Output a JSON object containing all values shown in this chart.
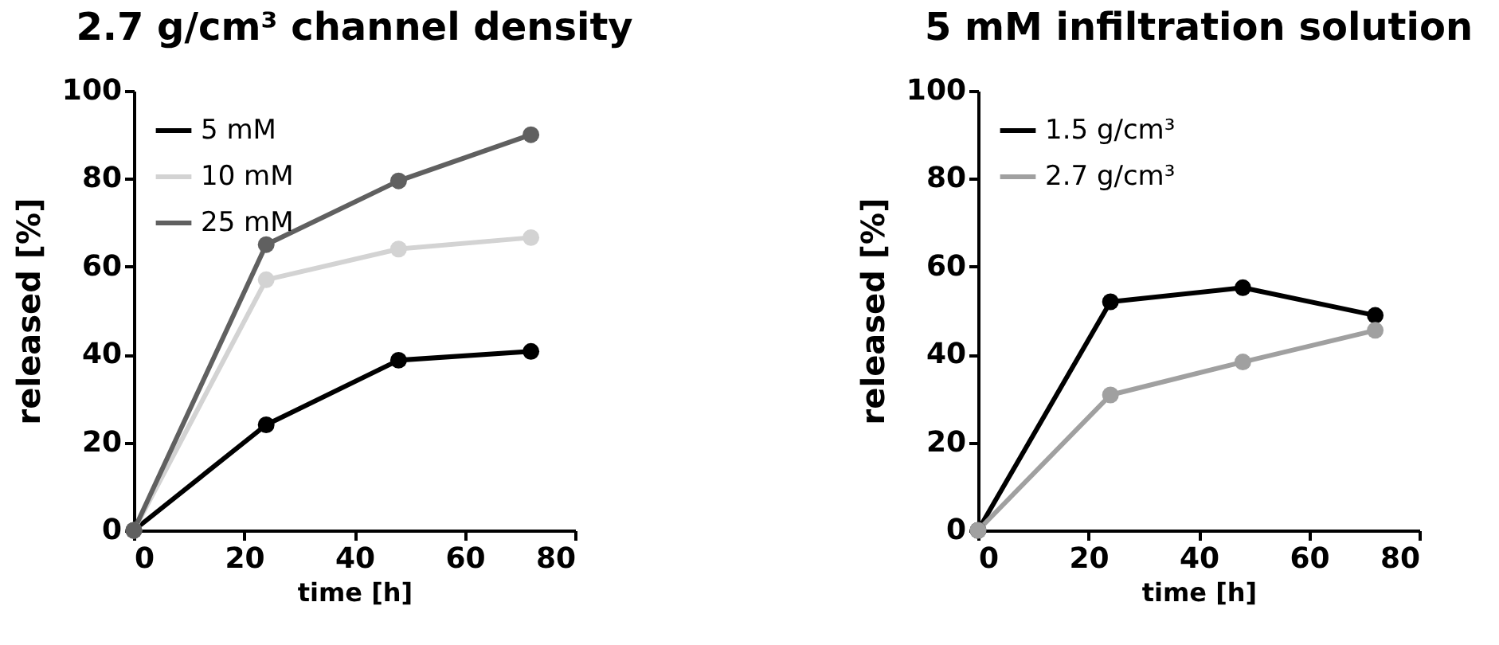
{
  "chart_data": [
    {
      "type": "line",
      "title": "2.7 g/cm³ channel density",
      "xlabel": "time [h]",
      "ylabel": "released [%]",
      "x": [
        0,
        24,
        48,
        72
      ],
      "series": [
        {
          "name": "5 mM",
          "color": "#000000",
          "values": [
            0,
            24,
            38.7,
            40.7
          ]
        },
        {
          "name": "10 mM",
          "color": "#d3d3d3",
          "values": [
            0,
            57,
            64,
            66.6
          ]
        },
        {
          "name": "25 mM",
          "color": "#606060",
          "values": [
            0,
            65,
            79.5,
            90
          ]
        }
      ],
      "xlim": [
        0,
        80
      ],
      "xticks": [
        0,
        20,
        40,
        60,
        80
      ],
      "ylim": [
        0,
        100
      ],
      "yticks": [
        0,
        20,
        40,
        60,
        80,
        100
      ],
      "grid": false,
      "legend": "top left",
      "marker": "circle",
      "line_style": "solid"
    },
    {
      "type": "line",
      "title": "5 mM infiltration solution",
      "xlabel": "time [h]",
      "ylabel": "released [%]",
      "x": [
        0,
        24,
        48,
        72
      ],
      "series": [
        {
          "name": "1.5 g/cm³",
          "color": "#000000",
          "values": [
            0,
            52,
            55.2,
            48.9
          ]
        },
        {
          "name": "2.7 g/cm³",
          "color": "#a0a0a0",
          "values": [
            0,
            30.8,
            38.3,
            45.5
          ]
        }
      ],
      "xlim": [
        0,
        80
      ],
      "xticks": [
        0,
        20,
        40,
        60,
        80
      ],
      "ylim": [
        0,
        100
      ],
      "yticks": [
        0,
        20,
        40,
        60,
        80,
        100
      ],
      "grid": false,
      "legend": "top left",
      "marker": "circle",
      "line_style": "solid"
    }
  ]
}
